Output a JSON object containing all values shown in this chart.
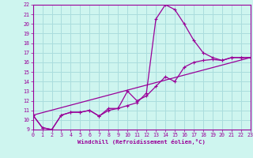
{
  "xlabel": "Windchill (Refroidissement éolien,°C)",
  "background_color": "#cef5ef",
  "grid_color": "#aadddd",
  "line_color": "#990099",
  "xmin": 0,
  "xmax": 23,
  "ymin": 9,
  "ymax": 22,
  "line1_x": [
    0,
    1,
    2,
    3,
    4,
    5,
    6,
    7,
    8,
    9,
    10,
    11,
    12,
    13,
    14,
    15,
    16,
    17,
    18,
    19,
    20,
    21,
    22,
    23
  ],
  "line1_y": [
    10.5,
    9.2,
    9.0,
    10.5,
    10.8,
    10.8,
    11.0,
    10.4,
    11.2,
    11.2,
    11.5,
    11.8,
    12.8,
    20.5,
    22.0,
    21.5,
    20.0,
    18.3,
    17.0,
    16.5,
    16.2,
    16.5,
    16.5,
    16.5
  ],
  "line2_x": [
    0,
    1,
    2,
    3,
    4,
    5,
    6,
    7,
    8,
    9,
    10,
    11,
    12,
    13,
    14,
    15,
    16,
    17,
    18,
    19,
    20,
    21,
    22,
    23
  ],
  "line2_y": [
    10.5,
    9.2,
    9.0,
    10.5,
    10.8,
    10.8,
    11.0,
    10.4,
    11.0,
    11.2,
    13.0,
    12.0,
    12.5,
    13.5,
    14.5,
    14.0,
    15.5,
    16.0,
    16.2,
    16.3,
    16.2,
    16.5,
    16.5,
    16.5
  ],
  "line3_x": [
    0,
    23
  ],
  "line3_y": [
    10.5,
    16.5
  ]
}
